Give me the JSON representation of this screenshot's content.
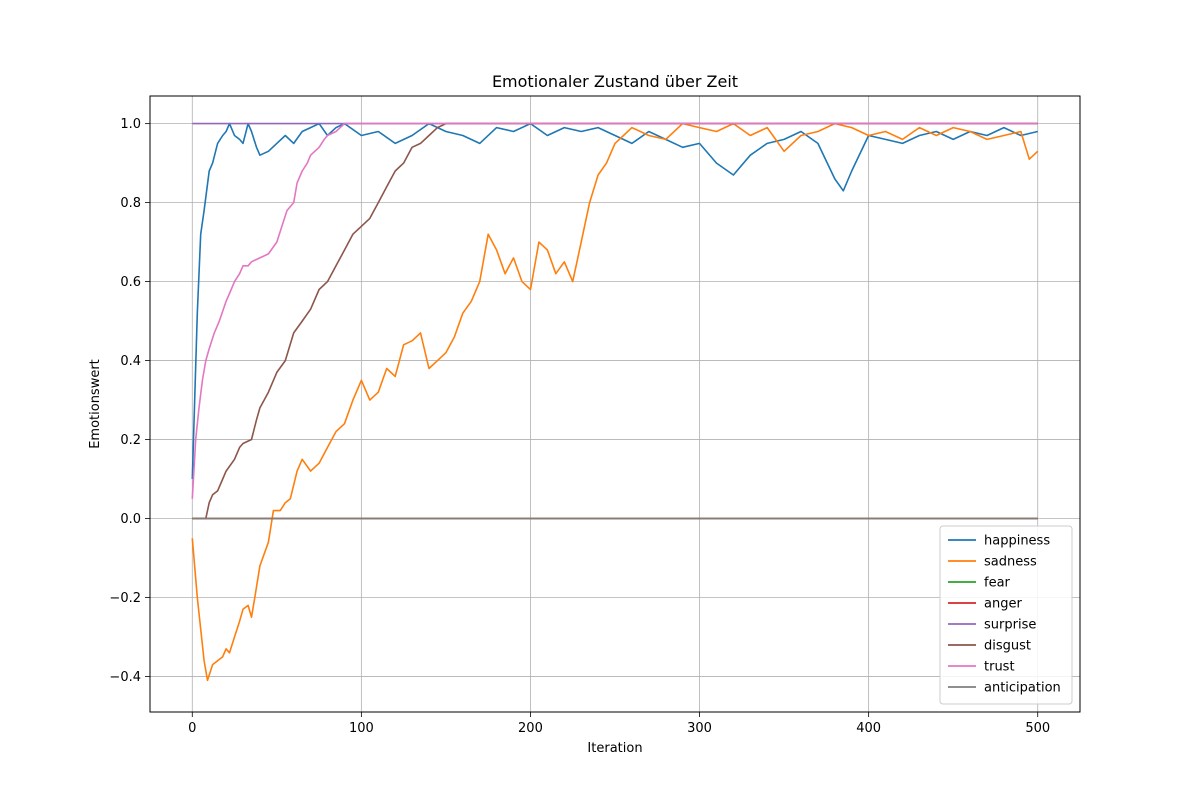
{
  "chart_data": {
    "type": "line",
    "title": "Emotionaler Zustand über Zeit",
    "xlabel": "Iteration",
    "ylabel": "Emotionswert",
    "xlim": [
      -25,
      525
    ],
    "ylim": [
      -0.49,
      1.07
    ],
    "xticks": [
      0,
      100,
      200,
      300,
      400,
      500
    ],
    "yticks": [
      -0.4,
      -0.2,
      0.0,
      0.2,
      0.4,
      0.6,
      0.8,
      1.0
    ],
    "grid": true,
    "legend_position": "lower-right",
    "series": [
      {
        "name": "happiness",
        "color": "#1f77b4",
        "x": [
          0,
          3,
          5,
          7,
          10,
          12,
          15,
          18,
          20,
          22,
          25,
          28,
          30,
          33,
          35,
          38,
          40,
          45,
          50,
          55,
          60,
          65,
          70,
          75,
          80,
          85,
          90,
          100,
          110,
          120,
          130,
          140,
          150,
          160,
          170,
          180,
          190,
          200,
          210,
          220,
          230,
          240,
          250,
          260,
          270,
          280,
          290,
          300,
          310,
          320,
          330,
          340,
          350,
          360,
          370,
          380,
          385,
          390,
          400,
          410,
          420,
          430,
          440,
          450,
          460,
          470,
          480,
          490,
          500
        ],
        "values": [
          0.1,
          0.52,
          0.72,
          0.78,
          0.88,
          0.9,
          0.95,
          0.97,
          0.98,
          1.0,
          0.97,
          0.96,
          0.95,
          1.0,
          0.98,
          0.94,
          0.92,
          0.93,
          0.95,
          0.97,
          0.95,
          0.98,
          0.99,
          1.0,
          0.97,
          0.99,
          1.0,
          0.97,
          0.98,
          0.95,
          0.97,
          1.0,
          0.98,
          0.97,
          0.95,
          0.99,
          0.98,
          1.0,
          0.97,
          0.99,
          0.98,
          0.99,
          0.97,
          0.95,
          0.98,
          0.96,
          0.94,
          0.95,
          0.9,
          0.87,
          0.92,
          0.95,
          0.96,
          0.98,
          0.95,
          0.86,
          0.83,
          0.88,
          0.97,
          0.96,
          0.95,
          0.97,
          0.98,
          0.96,
          0.98,
          0.97,
          0.99,
          0.97,
          0.98
        ]
      },
      {
        "name": "sadness",
        "color": "#ff7f0e",
        "x": [
          0,
          3,
          5,
          7,
          9,
          12,
          15,
          18,
          20,
          22,
          25,
          28,
          30,
          33,
          35,
          37,
          40,
          45,
          48,
          52,
          55,
          58,
          62,
          65,
          70,
          75,
          80,
          85,
          90,
          95,
          100,
          105,
          110,
          115,
          120,
          125,
          130,
          135,
          140,
          145,
          150,
          155,
          160,
          165,
          170,
          175,
          180,
          185,
          190,
          195,
          200,
          205,
          210,
          215,
          220,
          225,
          230,
          235,
          240,
          245,
          250,
          255,
          260,
          270,
          280,
          290,
          300,
          310,
          320,
          330,
          340,
          350,
          360,
          370,
          380,
          390,
          400,
          410,
          420,
          430,
          440,
          450,
          460,
          470,
          480,
          490,
          495,
          500
        ],
        "values": [
          -0.05,
          -0.2,
          -0.28,
          -0.36,
          -0.41,
          -0.37,
          -0.36,
          -0.35,
          -0.33,
          -0.34,
          -0.3,
          -0.26,
          -0.23,
          -0.22,
          -0.25,
          -0.2,
          -0.12,
          -0.06,
          0.02,
          0.02,
          0.04,
          0.05,
          0.12,
          0.15,
          0.12,
          0.14,
          0.18,
          0.22,
          0.24,
          0.3,
          0.35,
          0.3,
          0.32,
          0.38,
          0.36,
          0.44,
          0.45,
          0.47,
          0.38,
          0.4,
          0.42,
          0.46,
          0.52,
          0.55,
          0.6,
          0.72,
          0.68,
          0.62,
          0.66,
          0.6,
          0.58,
          0.7,
          0.68,
          0.62,
          0.65,
          0.6,
          0.7,
          0.8,
          0.87,
          0.9,
          0.95,
          0.97,
          0.99,
          0.97,
          0.96,
          1.0,
          0.99,
          0.98,
          1.0,
          0.97,
          0.99,
          0.93,
          0.97,
          0.98,
          1.0,
          0.99,
          0.97,
          0.98,
          0.96,
          0.99,
          0.97,
          0.99,
          0.98,
          0.96,
          0.97,
          0.98,
          0.91,
          0.93
        ]
      },
      {
        "name": "fear",
        "color": "#2ca02c",
        "x": [
          0,
          500
        ],
        "values": [
          0.0,
          0.0
        ]
      },
      {
        "name": "anger",
        "color": "#d62728",
        "x": [
          0,
          500
        ],
        "values": [
          0.0,
          0.0
        ]
      },
      {
        "name": "surprise",
        "color": "#9467bd",
        "x": [
          0,
          90,
          500
        ],
        "values": [
          1.0,
          1.0,
          1.0
        ]
      },
      {
        "name": "disgust",
        "color": "#8c564b",
        "x": [
          0,
          8,
          10,
          12,
          15,
          18,
          20,
          25,
          28,
          30,
          35,
          38,
          40,
          45,
          50,
          55,
          60,
          65,
          70,
          75,
          80,
          85,
          90,
          95,
          100,
          105,
          110,
          115,
          120,
          125,
          130,
          135,
          140,
          145,
          150,
          500
        ],
        "values": [
          0.0,
          0.0,
          0.04,
          0.06,
          0.07,
          0.1,
          0.12,
          0.15,
          0.18,
          0.19,
          0.2,
          0.25,
          0.28,
          0.32,
          0.37,
          0.4,
          0.47,
          0.5,
          0.53,
          0.58,
          0.6,
          0.64,
          0.68,
          0.72,
          0.74,
          0.76,
          0.8,
          0.84,
          0.88,
          0.9,
          0.94,
          0.95,
          0.97,
          0.99,
          1.0,
          1.0
        ]
      },
      {
        "name": "trust",
        "color": "#e377c2",
        "x": [
          0,
          2,
          4,
          6,
          8,
          10,
          13,
          16,
          20,
          23,
          25,
          28,
          30,
          33,
          35,
          40,
          45,
          50,
          53,
          56,
          60,
          62,
          65,
          68,
          70,
          75,
          78,
          80,
          85,
          90,
          500
        ],
        "values": [
          0.05,
          0.2,
          0.28,
          0.35,
          0.4,
          0.43,
          0.47,
          0.5,
          0.55,
          0.58,
          0.6,
          0.62,
          0.64,
          0.64,
          0.65,
          0.66,
          0.67,
          0.7,
          0.74,
          0.78,
          0.8,
          0.85,
          0.88,
          0.9,
          0.92,
          0.94,
          0.96,
          0.97,
          0.98,
          1.0,
          1.0
        ]
      },
      {
        "name": "anticipation",
        "color": "#7f7f7f",
        "x": [
          0,
          500
        ],
        "values": [
          0.0,
          0.0
        ]
      }
    ]
  }
}
